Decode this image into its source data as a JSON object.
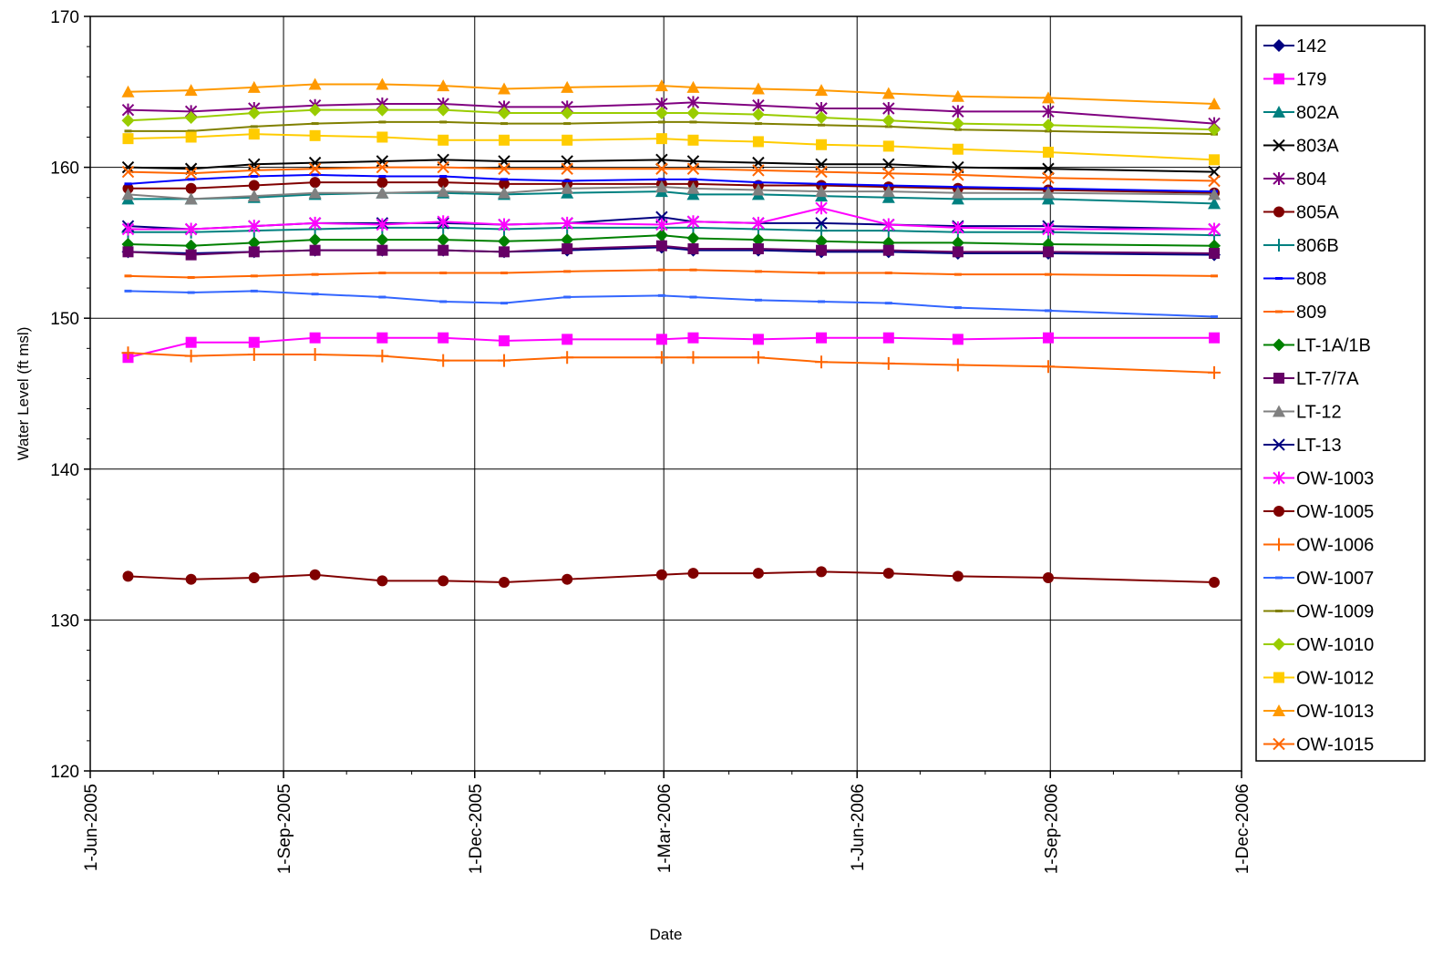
{
  "chart_data": {
    "type": "line",
    "xlabel": "Date",
    "ylabel": "Water Level (ft msl)",
    "ylim": [
      120,
      170
    ],
    "yticks": [
      120,
      130,
      140,
      150,
      160,
      170
    ],
    "xlim": [
      "2005-06-01",
      "2006-12-01"
    ],
    "xticks": [
      {
        "date": "2005-06-01",
        "label": "1-Jun-2005"
      },
      {
        "date": "2005-09-01",
        "label": "1-Sep-2005"
      },
      {
        "date": "2005-12-01",
        "label": "1-Dec-2005"
      },
      {
        "date": "2006-03-01",
        "label": "1-Mar-2006"
      },
      {
        "date": "2006-06-01",
        "label": "1-Jun-2006"
      },
      {
        "date": "2006-09-01",
        "label": "1-Sep-2006"
      },
      {
        "date": "2006-12-01",
        "label": "1-Dec-2006"
      }
    ],
    "grid": true,
    "legend_position": "right",
    "x": [
      "2005-06-19",
      "2005-07-19",
      "2005-08-18",
      "2005-09-16",
      "2005-10-18",
      "2005-11-16",
      "2005-12-15",
      "2006-01-14",
      "2006-02-28",
      "2006-03-15",
      "2006-04-15",
      "2006-05-15",
      "2006-06-16",
      "2006-07-19",
      "2006-08-31",
      "2006-11-18"
    ],
    "series": [
      {
        "name": "142",
        "color": "#000080",
        "marker": "diamond",
        "values": [
          154.4,
          154.3,
          154.4,
          154.5,
          154.5,
          154.5,
          154.4,
          154.5,
          154.7,
          154.5,
          154.5,
          154.4,
          154.4,
          154.3,
          154.3,
          154.2
        ]
      },
      {
        "name": "179",
        "color": "#ff00ff",
        "marker": "square",
        "values": [
          147.4,
          148.4,
          148.4,
          148.7,
          148.7,
          148.7,
          148.5,
          148.6,
          148.6,
          148.7,
          148.6,
          148.7,
          148.7,
          148.6,
          148.7,
          148.7
        ]
      },
      {
        "name": "802A",
        "color": "#008080",
        "marker": "triangle",
        "values": [
          157.9,
          157.9,
          158.0,
          158.2,
          158.3,
          158.3,
          158.2,
          158.3,
          158.4,
          158.2,
          158.2,
          158.1,
          158.0,
          157.9,
          157.9,
          157.6
        ]
      },
      {
        "name": "803A",
        "color": "#000000",
        "marker": "x",
        "values": [
          160.0,
          159.9,
          160.2,
          160.3,
          160.4,
          160.5,
          160.4,
          160.4,
          160.5,
          160.4,
          160.3,
          160.2,
          160.2,
          160.0,
          159.9,
          159.7
        ]
      },
      {
        "name": "804",
        "color": "#800080",
        "marker": "star",
        "values": [
          163.8,
          163.7,
          163.9,
          164.1,
          164.2,
          164.2,
          164.0,
          164.0,
          164.2,
          164.3,
          164.1,
          163.9,
          163.9,
          163.7,
          163.7,
          162.9
        ]
      },
      {
        "name": "805A",
        "color": "#800000",
        "marker": "circle",
        "values": [
          158.6,
          158.6,
          158.8,
          159.0,
          159.0,
          159.0,
          158.9,
          158.9,
          158.9,
          158.9,
          158.8,
          158.8,
          158.7,
          158.6,
          158.5,
          158.3
        ]
      },
      {
        "name": "806B",
        "color": "#008080",
        "marker": "plus",
        "values": [
          155.7,
          155.7,
          155.8,
          155.9,
          156.0,
          156.0,
          155.9,
          156.0,
          156.0,
          156.0,
          155.9,
          155.8,
          155.8,
          155.7,
          155.7,
          155.5
        ]
      },
      {
        "name": "808",
        "color": "#0000ff",
        "marker": "dash",
        "values": [
          158.9,
          159.2,
          159.4,
          159.5,
          159.4,
          159.4,
          159.2,
          159.1,
          159.2,
          159.2,
          159.0,
          158.9,
          158.8,
          158.7,
          158.6,
          158.4
        ]
      },
      {
        "name": "809",
        "color": "#ff6600",
        "marker": "dash",
        "values": [
          152.8,
          152.7,
          152.8,
          152.9,
          153.0,
          153.0,
          153.0,
          153.1,
          153.2,
          153.2,
          153.1,
          153.0,
          153.0,
          152.9,
          152.9,
          152.8
        ]
      },
      {
        "name": "LT-1A/1B",
        "color": "#008000",
        "marker": "diamond",
        "values": [
          154.9,
          154.8,
          155.0,
          155.2,
          155.2,
          155.2,
          155.1,
          155.2,
          155.5,
          155.3,
          155.2,
          155.1,
          155.0,
          155.0,
          154.9,
          154.8
        ]
      },
      {
        "name": "LT-7/7A",
        "color": "#660066",
        "marker": "square",
        "values": [
          154.4,
          154.2,
          154.4,
          154.5,
          154.5,
          154.5,
          154.4,
          154.6,
          154.8,
          154.6,
          154.6,
          154.5,
          154.5,
          154.4,
          154.4,
          154.3
        ]
      },
      {
        "name": "LT-12",
        "color": "#808080",
        "marker": "triangle",
        "values": [
          158.2,
          157.9,
          158.1,
          158.3,
          158.3,
          158.4,
          158.3,
          158.6,
          158.7,
          158.6,
          158.5,
          158.4,
          158.4,
          158.3,
          158.3,
          158.2
        ]
      },
      {
        "name": "LT-13",
        "color": "#000080",
        "marker": "x",
        "values": [
          156.1,
          155.9,
          156.1,
          156.3,
          156.3,
          156.3,
          156.2,
          156.3,
          156.7,
          156.4,
          156.3,
          156.3,
          156.2,
          156.1,
          156.1,
          155.9
        ]
      },
      {
        "name": "OW-1003",
        "color": "#ff00ff",
        "marker": "star",
        "values": [
          155.9,
          155.9,
          156.1,
          156.3,
          156.2,
          156.4,
          156.2,
          156.3,
          156.2,
          156.4,
          156.3,
          157.3,
          156.2,
          156.0,
          155.9,
          155.9
        ]
      },
      {
        "name": "OW-1005",
        "color": "#800000",
        "marker": "circle",
        "values": [
          132.9,
          132.7,
          132.8,
          133.0,
          132.6,
          132.6,
          132.5,
          132.7,
          133.0,
          133.1,
          133.1,
          133.2,
          133.1,
          132.9,
          132.8,
          132.5
        ]
      },
      {
        "name": "OW-1006",
        "color": "#ff6600",
        "marker": "plus",
        "values": [
          147.7,
          147.5,
          147.6,
          147.6,
          147.5,
          147.2,
          147.2,
          147.4,
          147.4,
          147.4,
          147.4,
          147.1,
          147.0,
          146.9,
          146.8,
          146.4
        ]
      },
      {
        "name": "OW-1007",
        "color": "#3366ff",
        "marker": "dash",
        "values": [
          151.8,
          151.7,
          151.8,
          151.6,
          151.4,
          151.1,
          151.0,
          151.4,
          151.5,
          151.4,
          151.2,
          151.1,
          151.0,
          150.7,
          150.5,
          150.1
        ]
      },
      {
        "name": "OW-1009",
        "color": "#808000",
        "marker": "dash",
        "values": [
          162.4,
          162.4,
          162.7,
          162.9,
          163.0,
          163.0,
          162.9,
          162.9,
          163.0,
          163.0,
          162.9,
          162.8,
          162.7,
          162.5,
          162.4,
          162.2
        ]
      },
      {
        "name": "OW-1010",
        "color": "#99cc00",
        "marker": "diamond",
        "values": [
          163.1,
          163.3,
          163.6,
          163.8,
          163.8,
          163.8,
          163.6,
          163.6,
          163.6,
          163.6,
          163.5,
          163.3,
          163.1,
          162.9,
          162.8,
          162.5
        ]
      },
      {
        "name": "OW-1012",
        "color": "#ffcc00",
        "marker": "square",
        "values": [
          161.9,
          162.0,
          162.2,
          162.1,
          162.0,
          161.8,
          161.8,
          161.8,
          161.9,
          161.8,
          161.7,
          161.5,
          161.4,
          161.2,
          161.0,
          160.5
        ]
      },
      {
        "name": "OW-1013",
        "color": "#ff9900",
        "marker": "triangle",
        "values": [
          165.0,
          165.1,
          165.3,
          165.5,
          165.5,
          165.4,
          165.2,
          165.3,
          165.4,
          165.3,
          165.2,
          165.1,
          164.9,
          164.7,
          164.6,
          164.2
        ]
      },
      {
        "name": "OW-1015",
        "color": "#ff6600",
        "marker": "x",
        "values": [
          159.7,
          159.6,
          159.8,
          159.9,
          160.0,
          160.0,
          159.9,
          159.9,
          159.9,
          159.9,
          159.8,
          159.7,
          159.6,
          159.5,
          159.3,
          159.1
        ]
      }
    ]
  }
}
